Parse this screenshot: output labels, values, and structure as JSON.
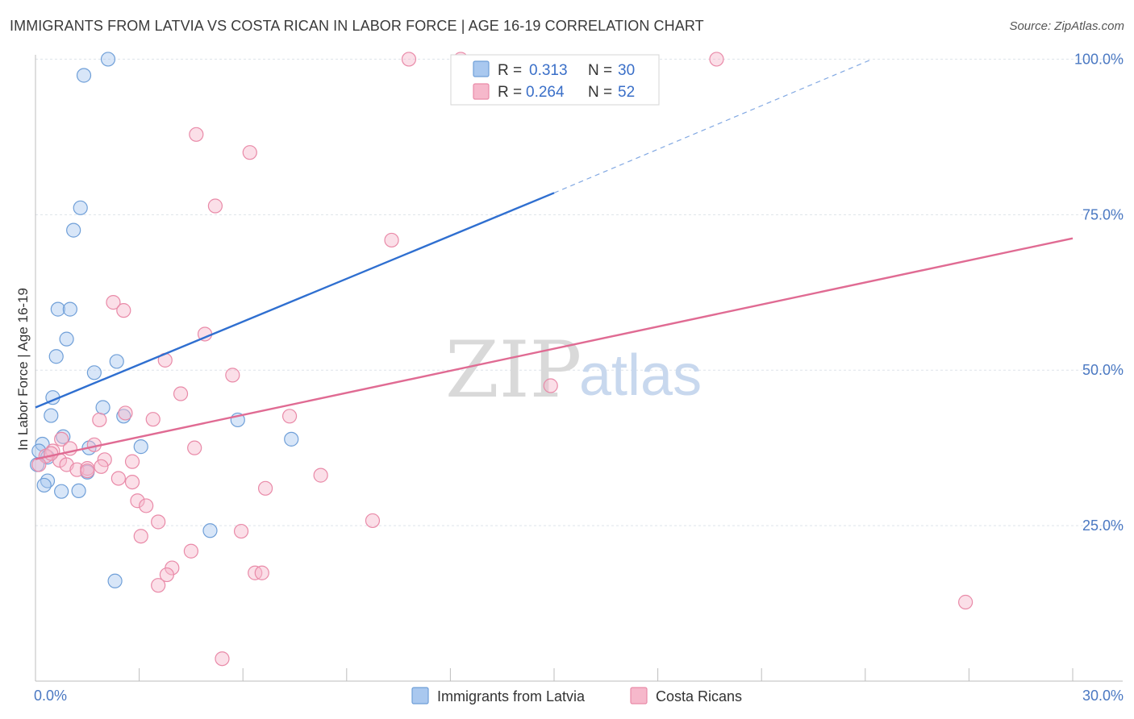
{
  "header": {
    "title": "IMMIGRANTS FROM LATVIA VS COSTA RICAN IN LABOR FORCE | AGE 16-19 CORRELATION CHART",
    "source": "Source: ZipAtlas.com"
  },
  "watermark": {
    "zip": "ZIP",
    "atlas": "atlas"
  },
  "legend": {
    "r_label": "R =",
    "n_label": "N =",
    "series": [
      {
        "r": "0.313",
        "n": "30"
      },
      {
        "r": "0.264",
        "n": "52"
      }
    ]
  },
  "colors": {
    "latvia_fill": "#a9c8ef",
    "latvia_stroke": "#6f9fd8",
    "latvia_line": "#2f6fd0",
    "costa_fill": "#f6b8cb",
    "costa_stroke": "#e98aa8",
    "costa_line": "#e06b93",
    "grid": "#dde3ea",
    "axis": "#bdbdbd"
  },
  "chart_data": {
    "type": "scatter",
    "title": "IMMIGRANTS FROM LATVIA VS COSTA RICAN IN LABOR FORCE | AGE 16-19 CORRELATION CHART",
    "xlabel": "",
    "ylabel": "In Labor Force | Age 16-19",
    "xlim": [
      0,
      30
    ],
    "ylim": [
      0,
      102
    ],
    "x_tick_labels": [
      "0.0%",
      "30.0%"
    ],
    "y_ticks": [
      25,
      50,
      75,
      100
    ],
    "y_tick_labels": [
      "25.0%",
      "50.0%",
      "75.0%",
      "100.0%"
    ],
    "grid": true,
    "legend_placement": "top-center",
    "series": [
      {
        "name": "Immigrants from Latvia",
        "r": 0.313,
        "n": 30,
        "trend": {
          "x0": 0,
          "y0": 44.0,
          "x1": 15,
          "y1": 78.5,
          "dashed_to_x": 24.2,
          "dashed_to_y": 100
        },
        "points": [
          [
            2.1,
            100.0
          ],
          [
            1.4,
            97.4
          ],
          [
            1.3,
            76.1
          ],
          [
            1.1,
            72.5
          ],
          [
            0.65,
            59.8
          ],
          [
            1.0,
            59.8
          ],
          [
            0.9,
            55.0
          ],
          [
            0.6,
            52.2
          ],
          [
            2.35,
            51.4
          ],
          [
            1.7,
            49.6
          ],
          [
            0.5,
            45.6
          ],
          [
            1.95,
            44.0
          ],
          [
            0.45,
            42.7
          ],
          [
            2.55,
            42.6
          ],
          [
            5.85,
            42.0
          ],
          [
            7.4,
            38.9
          ],
          [
            0.8,
            39.3
          ],
          [
            0.2,
            38.1
          ],
          [
            3.05,
            37.7
          ],
          [
            1.55,
            37.5
          ],
          [
            0.1,
            37.0
          ],
          [
            0.35,
            36.0
          ],
          [
            0.05,
            34.8
          ],
          [
            1.5,
            33.6
          ],
          [
            0.35,
            32.2
          ],
          [
            0.25,
            31.5
          ],
          [
            0.75,
            30.5
          ],
          [
            1.25,
            30.6
          ],
          [
            5.05,
            24.2
          ],
          [
            2.3,
            16.1
          ]
        ]
      },
      {
        "name": "Costa Ricans",
        "r": 0.264,
        "n": 52,
        "trend": {
          "x0": 0,
          "y0": 35.7,
          "x1": 30,
          "y1": 71.2
        },
        "points": [
          [
            10.8,
            100.0
          ],
          [
            12.3,
            100.0
          ],
          [
            19.7,
            100.0
          ],
          [
            4.65,
            87.9
          ],
          [
            6.2,
            85.0
          ],
          [
            5.2,
            76.4
          ],
          [
            10.3,
            70.9
          ],
          [
            2.25,
            60.9
          ],
          [
            2.55,
            59.6
          ],
          [
            4.9,
            55.8
          ],
          [
            3.75,
            51.6
          ],
          [
            5.7,
            49.2
          ],
          [
            14.9,
            47.5
          ],
          [
            4.2,
            46.2
          ],
          [
            2.6,
            43.1
          ],
          [
            7.35,
            42.6
          ],
          [
            1.85,
            42.0
          ],
          [
            3.4,
            42.1
          ],
          [
            0.75,
            38.9
          ],
          [
            1.7,
            38.0
          ],
          [
            4.6,
            37.5
          ],
          [
            0.5,
            37.0
          ],
          [
            1.0,
            37.4
          ],
          [
            0.3,
            36.2
          ],
          [
            0.7,
            35.5
          ],
          [
            2.0,
            35.6
          ],
          [
            2.8,
            35.3
          ],
          [
            0.1,
            34.8
          ],
          [
            0.9,
            34.8
          ],
          [
            1.2,
            34.0
          ],
          [
            1.5,
            34.2
          ],
          [
            1.9,
            34.5
          ],
          [
            8.25,
            33.1
          ],
          [
            2.4,
            32.6
          ],
          [
            2.8,
            32.0
          ],
          [
            6.65,
            31.0
          ],
          [
            2.95,
            29.0
          ],
          [
            3.2,
            28.2
          ],
          [
            3.55,
            25.6
          ],
          [
            9.75,
            25.8
          ],
          [
            5.95,
            24.1
          ],
          [
            3.05,
            23.3
          ],
          [
            4.5,
            20.9
          ],
          [
            3.95,
            18.2
          ],
          [
            3.8,
            17.1
          ],
          [
            6.35,
            17.4
          ],
          [
            6.55,
            17.4
          ],
          [
            3.55,
            15.4
          ],
          [
            26.9,
            12.7
          ],
          [
            5.4,
            3.6
          ],
          [
            0.45,
            36.6
          ],
          [
            1.5,
            33.8
          ]
        ]
      }
    ]
  }
}
